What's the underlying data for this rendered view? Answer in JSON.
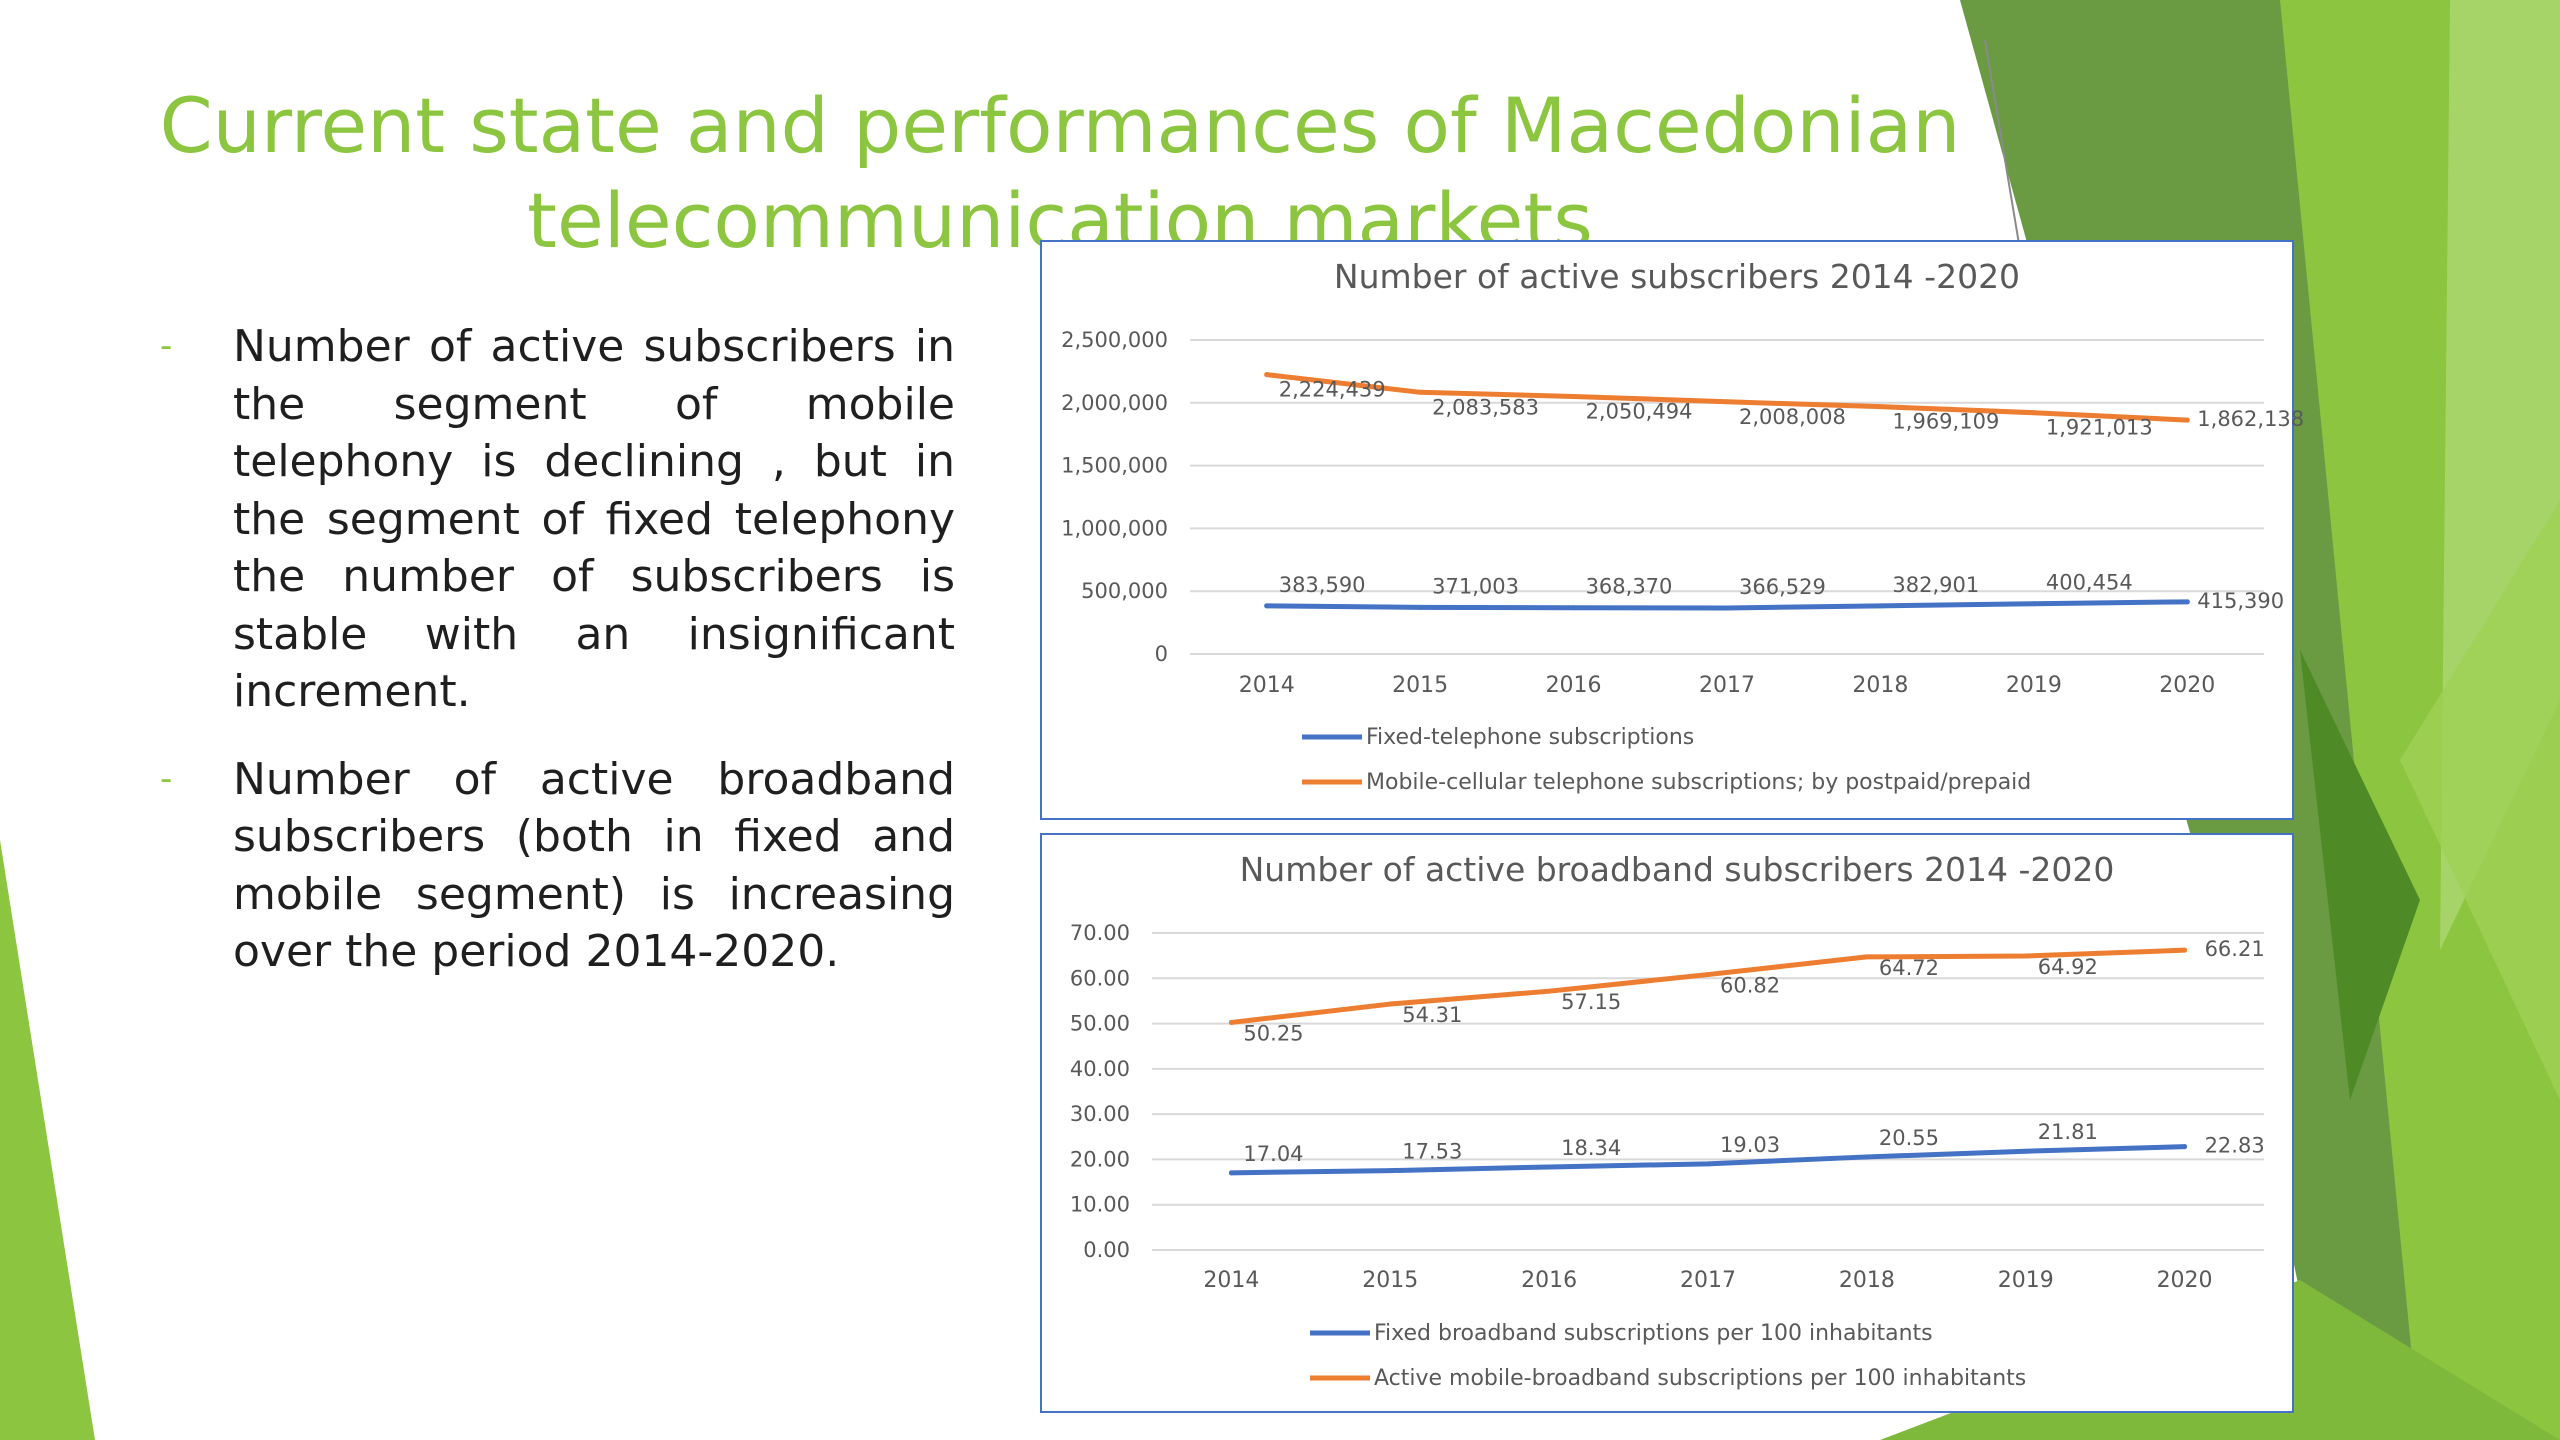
{
  "slide": {
    "title_line1": "Current state and performances of Macedonian",
    "title_line2": "telecommunication markets",
    "bullet_marker": "-",
    "bullets": [
      "Number of active subscribers in the segment of mobile telephony is declining , but in the segment of fixed telephony the number of subscribers is stable with an insignificant increment.",
      "Number of active broadband subscribers (both in fixed and mobile segment) is increasing over the period 2014-2020."
    ]
  },
  "colors": {
    "accent_green": "#8cc540",
    "dark_green": "#5a8a32",
    "series_blue": "#4472c4",
    "series_orange": "#ed7d31",
    "axis_text": "#595959",
    "gridline": "#d9d9d9"
  },
  "chart_data": [
    {
      "type": "line",
      "title": "Number of active subscribers 2014 -2020",
      "x": [
        "2014",
        "2015",
        "2016",
        "2017",
        "2018",
        "2019",
        "2020"
      ],
      "ylim": [
        0,
        2500000
      ],
      "yticks": [
        "0",
        "500,000",
        "1,000,000",
        "1,500,000",
        "2,000,000",
        "2,500,000"
      ],
      "grid": true,
      "legend_position": "bottom",
      "series": [
        {
          "name": "Fixed-telephone subscriptions",
          "color": "#4472c4",
          "values": [
            383590,
            371003,
            368370,
            366529,
            382901,
            400454,
            415390
          ],
          "labels": [
            "383,590",
            "371,003",
            "368,370",
            "366,529",
            "382,901",
            "400,454",
            "415,390"
          ]
        },
        {
          "name": "Mobile-cellular telephone subscriptions;  by postpaid/prepaid",
          "color": "#ed7d31",
          "values": [
            2224439,
            2083583,
            2050494,
            2008008,
            1969109,
            1921013,
            1862138
          ],
          "labels": [
            "2,224,439",
            "2,083,583",
            "2,050,494",
            "2,008,008",
            "1,969,109",
            "1,921,013",
            "1,862,138"
          ]
        }
      ]
    },
    {
      "type": "line",
      "title": "Number of active broadband subscribers  2014 -2020",
      "x": [
        "2014",
        "2015",
        "2016",
        "2017",
        "2018",
        "2019",
        "2020"
      ],
      "ylim": [
        0,
        70
      ],
      "yticks": [
        "0.00",
        "10.00",
        "20.00",
        "30.00",
        "40.00",
        "50.00",
        "60.00",
        "70.00"
      ],
      "grid": true,
      "legend_position": "bottom",
      "series": [
        {
          "name": "Fixed broadband subscriptions per 100 inhabitants",
          "color": "#4472c4",
          "values": [
            17.04,
            17.53,
            18.34,
            19.03,
            20.55,
            21.81,
            22.83
          ],
          "labels": [
            "17.04",
            "17.53",
            "18.34",
            "19.03",
            "20.55",
            "21.81",
            "22.83"
          ]
        },
        {
          "name": "Active mobile-broadband subscriptions per 100 inhabitants",
          "color": "#ed7d31",
          "values": [
            50.25,
            54.31,
            57.15,
            60.82,
            64.72,
            64.92,
            66.21
          ],
          "labels": [
            "50.25",
            "54.31",
            "57.15",
            "60.82",
            "64.72",
            "64.92",
            "66.21"
          ]
        }
      ]
    }
  ]
}
